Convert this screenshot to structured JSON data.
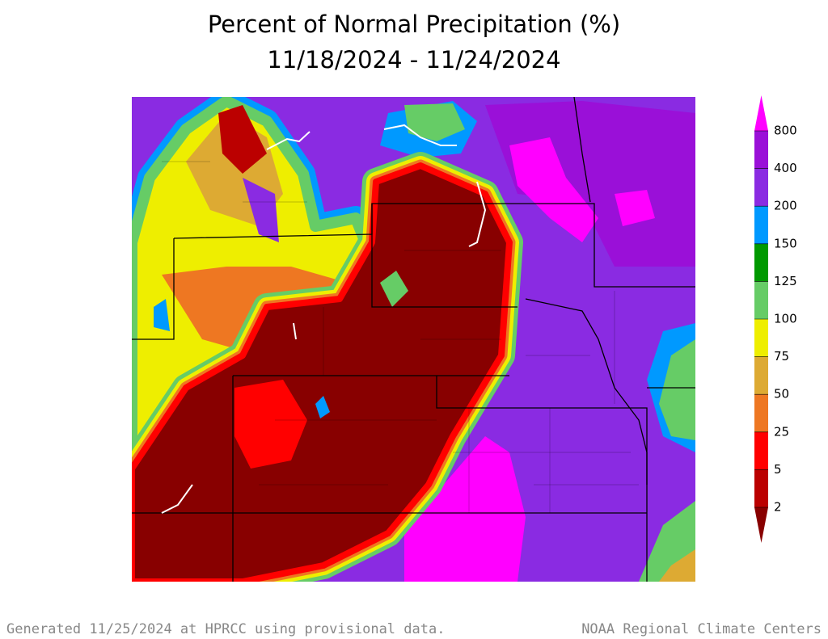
{
  "title": "Percent of Normal Precipitation (%)",
  "subtitle": "11/18/2024 - 11/24/2024",
  "legend": {
    "labels": [
      800,
      400,
      200,
      150,
      125,
      100,
      75,
      50,
      25,
      5,
      2
    ],
    "colors": [
      "#ff00ff",
      "#9a10d8",
      "#8a2be2",
      "#0099ff",
      "#009900",
      "#66cc66",
      "#eeee00",
      "#ddaa33",
      "#ee7722",
      "#ff0000",
      "#bb0000",
      "#880000"
    ]
  },
  "footer": {
    "left": "Generated 11/25/2024 at HPRCC using provisional data.",
    "right": "NOAA Regional Climate Centers"
  }
}
